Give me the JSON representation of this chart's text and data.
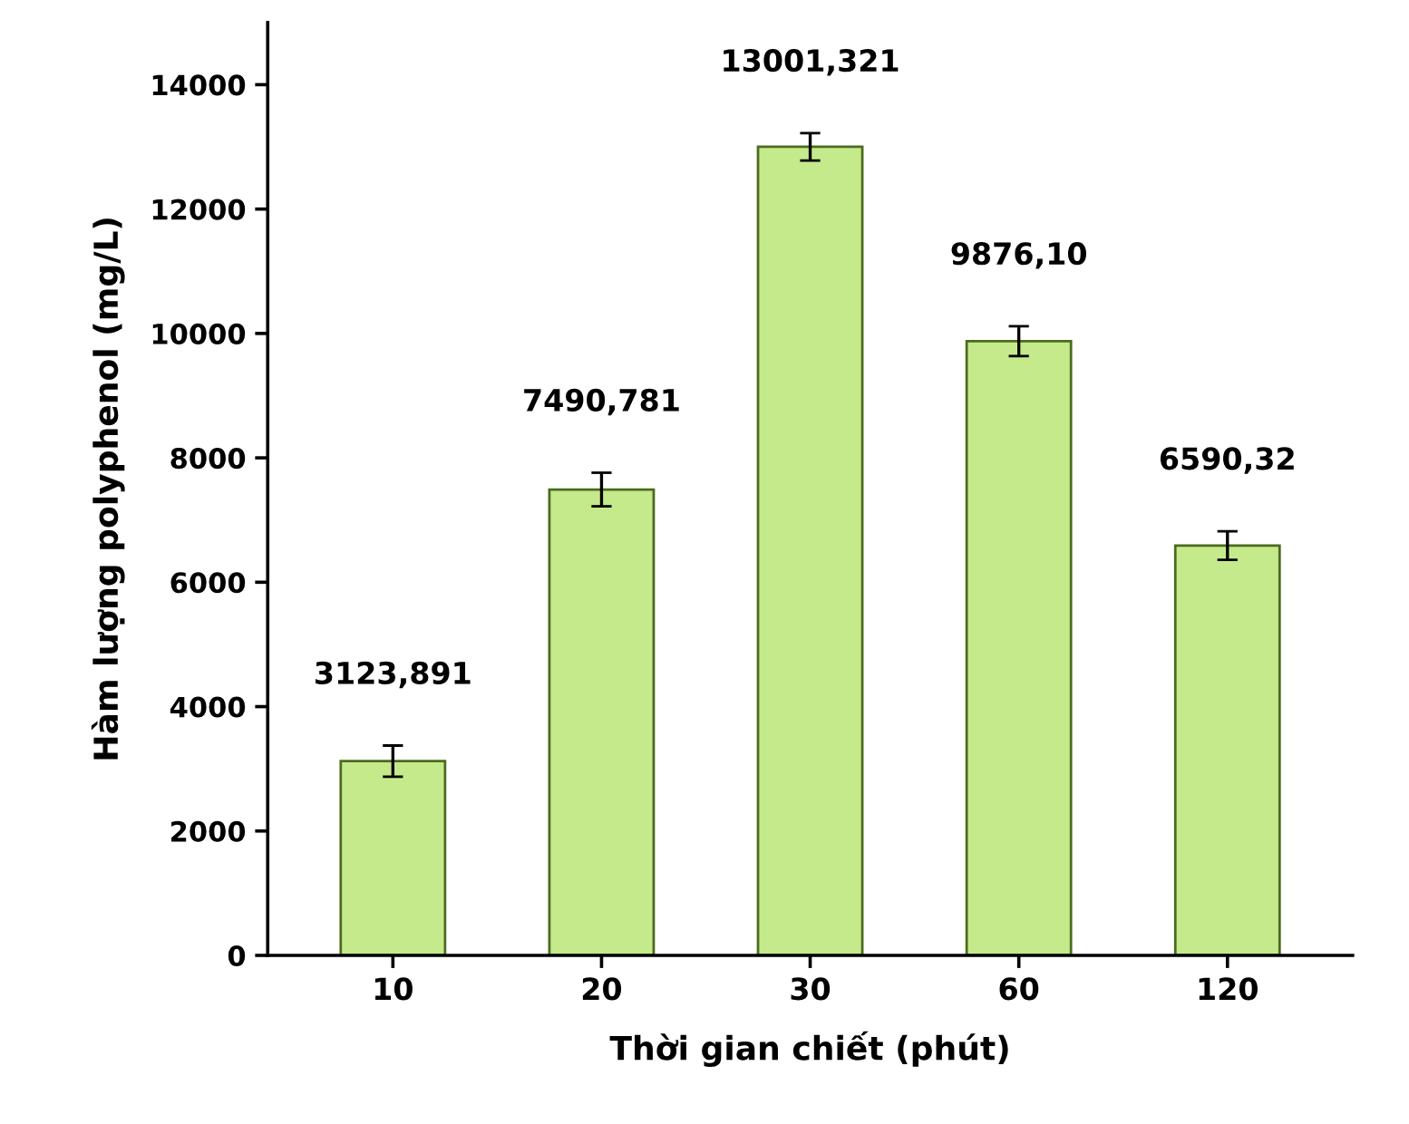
{
  "chart_data": {
    "type": "bar",
    "xlabel": "Thời gian chiết (phút)",
    "ylabel": "Hàm lượng polyphenol (mg/L)",
    "categories": [
      "10",
      "20",
      "30",
      "60",
      "120"
    ],
    "values": [
      3123.891,
      7490.781,
      13001.321,
      9876.1,
      6590.32
    ],
    "errors": [
      250,
      270,
      220,
      240,
      230
    ],
    "value_labels": [
      "3123,891",
      "7490,781",
      "13001,321",
      "9876,10",
      "6590,32"
    ],
    "color": "#c5ea8c",
    "ylim": [
      0,
      15000
    ],
    "yticks": [
      0,
      2000,
      4000,
      6000,
      8000,
      10000,
      12000,
      14000
    ],
    "grid": false,
    "legend": false
  }
}
